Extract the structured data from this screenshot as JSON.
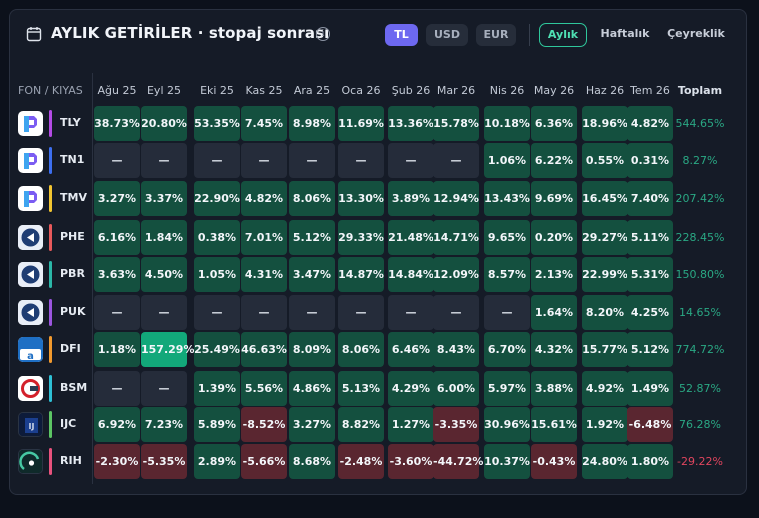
{
  "header": {
    "title": "AYLIK GETİRİLER · stopaj sonrası",
    "currencies": [
      {
        "label": "TL",
        "active": true
      },
      {
        "label": "USD",
        "active": false
      },
      {
        "label": "EUR",
        "active": false
      }
    ],
    "periods": [
      {
        "label": "Aylık",
        "active": true
      },
      {
        "label": "Haftalık",
        "active": false
      },
      {
        "label": "Çeyreklik",
        "active": false
      }
    ]
  },
  "table": {
    "first_header": "FON / KIYAS",
    "months": [
      "Ağu 25",
      "Eyl 25",
      "Eki 25",
      "Kas 25",
      "Ara 25",
      "Oca 26",
      "Şub 26",
      "Mar 26",
      "Nis 26",
      "May 26",
      "Haz 26",
      "Tem 26"
    ],
    "total_header": "Toplam",
    "rows": [
      {
        "code": "TLY",
        "logo": "tly-logo",
        "bar_color": "#b44be6",
        "values": [
          "38.73%",
          "20.80%",
          "53.35%",
          "7.45%",
          "8.98%",
          "11.69%",
          "13.36%",
          "15.78%",
          "10.18%",
          "6.36%",
          "18.96%",
          "4.82%"
        ],
        "total": "544.65%"
      },
      {
        "code": "TN1",
        "logo": "tn1-logo",
        "bar_color": "#3d6ff0",
        "values": [
          "—",
          "—",
          "—",
          "—",
          "—",
          "—",
          "—",
          "—",
          "1.06%",
          "6.22%",
          "0.55%",
          "0.31%"
        ],
        "total": "8.27%"
      },
      {
        "code": "TMV",
        "logo": "tmv-logo",
        "bar_color": "#f2c531",
        "values": [
          "3.27%",
          "3.37%",
          "22.90%",
          "4.82%",
          "8.06%",
          "13.30%",
          "3.89%",
          "12.94%",
          "13.43%",
          "9.69%",
          "16.45%",
          "7.40%"
        ],
        "total": "207.42%"
      },
      {
        "code": "PHE",
        "logo": "phe-logo",
        "bar_color": "#e8595b",
        "values": [
          "6.16%",
          "1.84%",
          "0.38%",
          "7.01%",
          "5.12%",
          "29.33%",
          "21.48%",
          "14.71%",
          "9.65%",
          "0.20%",
          "29.27%",
          "5.11%"
        ],
        "total": "228.45%"
      },
      {
        "code": "PBR",
        "logo": "pbr-logo",
        "bar_color": "#2bb7a8",
        "values": [
          "3.63%",
          "4.50%",
          "1.05%",
          "4.31%",
          "3.47%",
          "14.87%",
          "14.84%",
          "12.09%",
          "8.57%",
          "2.13%",
          "22.99%",
          "5.31%"
        ],
        "total": "150.80%"
      },
      {
        "code": "PUK",
        "logo": "puk-logo",
        "bar_color": "#9c56e0",
        "values": [
          "—",
          "—",
          "—",
          "—",
          "—",
          "—",
          "—",
          "—",
          "—",
          "1.64%",
          "8.20%",
          "4.25%"
        ],
        "total": "14.65%"
      },
      {
        "code": "DFI",
        "logo": "dfi-logo",
        "bar_color": "#f29a2e",
        "values": [
          "1.18%",
          "157.29%",
          "25.49%",
          "46.63%",
          "8.09%",
          "8.06%",
          "6.46%",
          "8.43%",
          "6.70%",
          "4.32%",
          "15.77%",
          "5.12%"
        ],
        "total": "774.72%"
      },
      {
        "code": "BSM",
        "logo": "bsm-logo",
        "bar_color": "#2ec1d6",
        "values": [
          "—",
          "—",
          "1.39%",
          "5.56%",
          "4.86%",
          "5.13%",
          "4.29%",
          "6.00%",
          "5.97%",
          "3.88%",
          "4.92%",
          "1.49%"
        ],
        "total": "52.87%"
      },
      {
        "code": "IJC",
        "logo": "ijc-logo",
        "bar_color": "#5cc564",
        "values": [
          "6.92%",
          "7.23%",
          "5.89%",
          "-8.52%",
          "3.27%",
          "8.82%",
          "1.27%",
          "-3.35%",
          "30.96%",
          "15.61%",
          "1.92%",
          "-6.48%"
        ],
        "total": "76.28%"
      },
      {
        "code": "RIH",
        "logo": "rih-logo",
        "bar_color": "#e8527d",
        "values": [
          "-2.30%",
          "-5.35%",
          "2.89%",
          "-5.66%",
          "8.68%",
          "-2.48%",
          "-3.60%",
          "-44.72%",
          "10.37%",
          "-0.43%",
          "24.80%",
          "1.80%"
        ],
        "total": "-29.22%"
      }
    ]
  }
}
